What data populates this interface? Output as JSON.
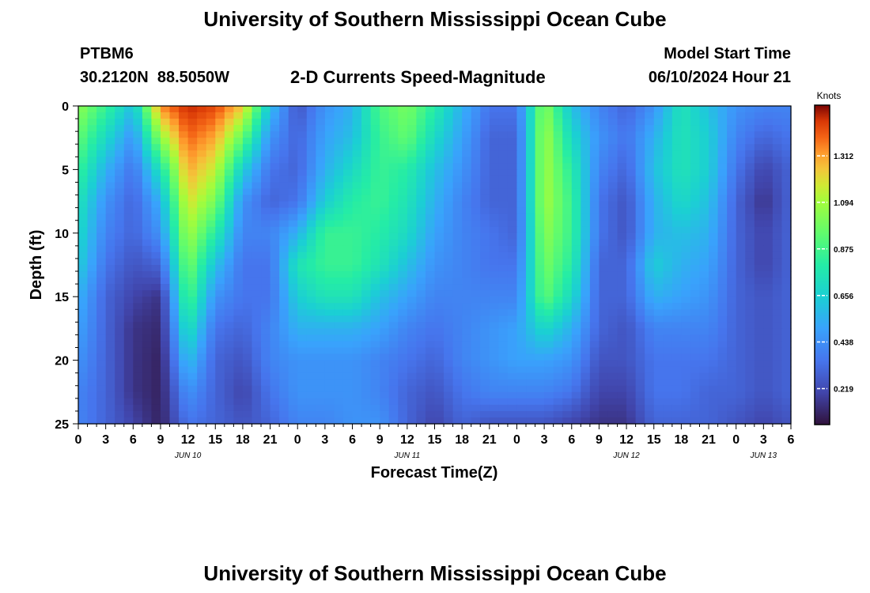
{
  "page": {
    "title": "University of Southern Mississippi Ocean Cube",
    "footer_title": "University of Southern Mississippi Ocean Cube",
    "station_id": "PTBM6",
    "location": "30.2120N  88.5050W",
    "subtitle": "2-D Currents Speed-Magnitude",
    "model_start_label": "Model Start Time",
    "model_start_value": "06/10/2024 Hour 21"
  },
  "chart_data": {
    "type": "heatmap",
    "xlabel": "Forecast Time(Z)",
    "ylabel": "Depth (ft)",
    "colorbar_label": "Knots",
    "xlim": [
      0,
      78
    ],
    "ylim": [
      0,
      25
    ],
    "y_inverted": true,
    "x_tick_values": [
      0,
      3,
      6,
      9,
      12,
      15,
      18,
      21,
      24,
      27,
      30,
      33,
      36,
      39,
      42,
      45,
      48,
      51,
      54,
      57,
      60,
      63,
      66,
      69,
      72,
      75,
      78
    ],
    "x_tick_labels": [
      "0",
      "3",
      "6",
      "9",
      "12",
      "15",
      "18",
      "21",
      "0",
      "3",
      "6",
      "9",
      "12",
      "15",
      "18",
      "21",
      "0",
      "3",
      "6",
      "9",
      "12",
      "15",
      "18",
      "21",
      "0",
      "3",
      "6"
    ],
    "y_tick_values": [
      0,
      5,
      10,
      15,
      20,
      25
    ],
    "y_tick_labels": [
      "0",
      "5",
      "10",
      "15",
      "20",
      "25"
    ],
    "date_labels": [
      {
        "hour": 12,
        "label": "JUN 10"
      },
      {
        "hour": 36,
        "label": "JUN 11"
      },
      {
        "hour": 60,
        "label": "JUN 12"
      },
      {
        "hour": 75,
        "label": "JUN 13"
      }
    ],
    "colorbar": {
      "min": 0.05,
      "max": 1.55,
      "tick_values": [
        0.219,
        0.438,
        0.656,
        0.875,
        1.094,
        1.312
      ],
      "tick_labels": [
        "0.219",
        "0.438",
        "0.656",
        "0.875",
        "1.094",
        "1.312"
      ]
    },
    "depths": [
      0,
      2.5,
      5,
      7.5,
      10,
      12.5,
      15,
      17.5,
      20,
      22.5,
      25
    ],
    "grid_note_hours_step": 3,
    "times": [
      0,
      3,
      6,
      9,
      12,
      15,
      18,
      21,
      24,
      27,
      30,
      33,
      36,
      39,
      42,
      45,
      48,
      51,
      54,
      57,
      60,
      63,
      66,
      69,
      72,
      75,
      78
    ],
    "speed_knots": [
      [
        1.05,
        0.85,
        0.6,
        1.35,
        1.5,
        1.45,
        1.25,
        0.6,
        0.25,
        0.45,
        0.55,
        0.9,
        1.0,
        0.8,
        0.55,
        0.35,
        0.35,
        1.05,
        0.6,
        0.4,
        0.3,
        0.45,
        0.75,
        0.6,
        0.45,
        0.4,
        0.4
      ],
      [
        0.95,
        0.7,
        0.45,
        1.05,
        1.4,
        1.3,
        0.95,
        0.45,
        0.3,
        0.5,
        0.6,
        0.85,
        0.95,
        0.7,
        0.5,
        0.3,
        0.3,
        1.1,
        0.7,
        0.45,
        0.35,
        0.55,
        0.75,
        0.65,
        0.4,
        0.3,
        0.35
      ],
      [
        0.85,
        0.55,
        0.35,
        0.75,
        1.3,
        1.15,
        0.65,
        0.35,
        0.3,
        0.55,
        0.7,
        0.85,
        0.8,
        0.6,
        0.45,
        0.3,
        0.3,
        1.1,
        0.8,
        0.4,
        0.3,
        0.6,
        0.75,
        0.65,
        0.35,
        0.2,
        0.3
      ],
      [
        0.75,
        0.45,
        0.3,
        0.55,
        1.2,
        1.0,
        0.45,
        0.3,
        0.35,
        0.65,
        0.8,
        0.85,
        0.75,
        0.55,
        0.4,
        0.3,
        0.3,
        1.1,
        0.85,
        0.35,
        0.25,
        0.55,
        0.7,
        0.6,
        0.3,
        0.15,
        0.3
      ],
      [
        0.7,
        0.4,
        0.3,
        0.45,
        1.1,
        0.8,
        0.4,
        0.4,
        0.55,
        0.85,
        0.85,
        0.8,
        0.7,
        0.5,
        0.4,
        0.35,
        0.3,
        1.05,
        0.85,
        0.35,
        0.25,
        0.55,
        0.6,
        0.55,
        0.3,
        0.2,
        0.3
      ],
      [
        0.65,
        0.35,
        0.25,
        0.3,
        1.0,
        0.6,
        0.35,
        0.35,
        0.75,
        0.85,
        0.85,
        0.75,
        0.6,
        0.45,
        0.4,
        0.35,
        0.35,
        1.0,
        0.8,
        0.3,
        0.3,
        0.65,
        0.55,
        0.5,
        0.3,
        0.2,
        0.3
      ],
      [
        0.55,
        0.3,
        0.2,
        0.15,
        0.9,
        0.45,
        0.35,
        0.35,
        0.65,
        0.75,
        0.75,
        0.6,
        0.5,
        0.4,
        0.4,
        0.4,
        0.4,
        0.95,
        0.7,
        0.3,
        0.3,
        0.55,
        0.5,
        0.45,
        0.3,
        0.25,
        0.3
      ],
      [
        0.5,
        0.3,
        0.15,
        0.12,
        0.75,
        0.35,
        0.3,
        0.4,
        0.55,
        0.55,
        0.55,
        0.5,
        0.4,
        0.35,
        0.4,
        0.45,
        0.5,
        0.7,
        0.55,
        0.3,
        0.25,
        0.4,
        0.4,
        0.4,
        0.3,
        0.25,
        0.3
      ],
      [
        0.45,
        0.3,
        0.15,
        0.1,
        0.6,
        0.3,
        0.25,
        0.4,
        0.45,
        0.45,
        0.45,
        0.4,
        0.35,
        0.3,
        0.4,
        0.45,
        0.5,
        0.5,
        0.45,
        0.25,
        0.25,
        0.35,
        0.35,
        0.35,
        0.3,
        0.25,
        0.3
      ],
      [
        0.4,
        0.3,
        0.15,
        0.1,
        0.45,
        0.3,
        0.2,
        0.35,
        0.45,
        0.45,
        0.45,
        0.4,
        0.3,
        0.25,
        0.35,
        0.4,
        0.4,
        0.4,
        0.35,
        0.2,
        0.2,
        0.35,
        0.35,
        0.3,
        0.3,
        0.25,
        0.3
      ],
      [
        0.4,
        0.3,
        0.2,
        0.1,
        0.35,
        0.3,
        0.25,
        0.3,
        0.4,
        0.4,
        0.45,
        0.45,
        0.3,
        0.2,
        0.3,
        0.25,
        0.25,
        0.25,
        0.2,
        0.15,
        0.15,
        0.3,
        0.3,
        0.3,
        0.25,
        0.2,
        0.25
      ]
    ]
  }
}
